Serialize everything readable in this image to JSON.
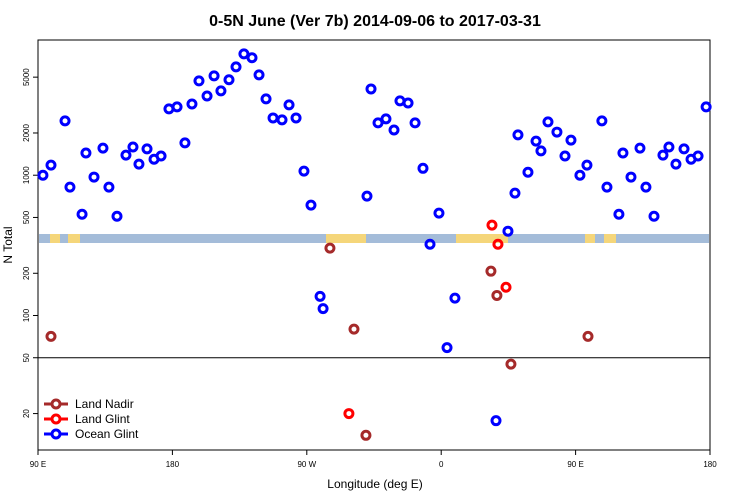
{
  "chart_data": {
    "type": "scatter",
    "title": "0-5N June (Ver 7b)   2014-09-06 to 2017-03-31",
    "x_label": "Longitude (deg E)",
    "y_label": "N Total",
    "xlim": [
      90,
      540
    ],
    "ylim": [
      11,
      9200
    ],
    "y_log": true,
    "xticks": [
      {
        "value": 90,
        "label": "90 E"
      },
      180,
      {
        "value": 270,
        "label": "90 W"
      },
      {
        "value": 360,
        "label": "0"
      },
      {
        "value": 450,
        "label": "90 E"
      },
      {
        "value": 540,
        "label": "180"
      }
    ],
    "yticks": [
      20,
      50,
      100,
      200,
      500,
      1000,
      2000,
      5000
    ],
    "hline": 50,
    "legend": "lower left",
    "series": [
      {
        "name": "Land Nadir",
        "color": "#a52a2a",
        "x": [
          98.7,
          285.5,
          301.6,
          309.6,
          393.3,
          397.3,
          406.7,
          458.3
        ],
        "values": [
          71,
          302,
          80,
          14,
          207,
          139,
          45,
          71
        ]
      },
      {
        "name": "Land Glint",
        "color": "#ff0000",
        "x": [
          394,
          398,
          403.4,
          298.2
        ],
        "values": [
          441,
          322,
          159,
          20
        ]
      },
      {
        "name": "Ocean Glint",
        "color": "#0000ff",
        "x": [
          93.3,
          98.7,
          108.1,
          111.4,
          119.5,
          122.1,
          127.5,
          133.5,
          137.5,
          142.9,
          148.9,
          153.6,
          157.6,
          163,
          167.7,
          172.4,
          177.7,
          183.1,
          188.4,
          193.1,
          197.8,
          203.2,
          207.9,
          212.5,
          217.9,
          222.6,
          227.9,
          233.3,
          238,
          242.7,
          247.4,
          253.4,
          258.1,
          262.8,
          268.1,
          272.8,
          278.9,
          280.9,
          310.3,
          313,
          317.7,
          323,
          328.4,
          332.4,
          337.8,
          342.5,
          347.8,
          352.5,
          358.5,
          363.9,
          369.2,
          404.7,
          409.4,
          411.4,
          418.1,
          423.5,
          426.8,
          431.5,
          437.5,
          442.9,
          446.9,
          452.9,
          457.6,
          467.6,
          471,
          479,
          481.7,
          487.1,
          493.1,
          497.1,
          502.5,
          508.5,
          512.5,
          517.2,
          522.6,
          527.3,
          532,
          537.4,
          396.7
        ],
        "values": [
          1000,
          1180,
          2440,
          822,
          527,
          1440,
          970,
          1560,
          822,
          510,
          1390,
          1590,
          1200,
          1540,
          1300,
          1370,
          2970,
          3070,
          1700,
          3220,
          4700,
          3670,
          5110,
          3990,
          4790,
          5920,
          7330,
          6870,
          5190,
          3500,
          2560,
          2480,
          3170,
          2560,
          1070,
          612,
          137,
          112,
          710,
          4120,
          2360,
          2520,
          2100,
          3390,
          3270,
          2360,
          1120,
          322,
          537,
          59,
          133,
          399,
          745,
          1940,
          1050,
          1750,
          1490,
          2400,
          2030,
          1370,
          1780,
          1000,
          1180,
          2440,
          822,
          527,
          1440,
          970,
          1560,
          822,
          510,
          1390,
          1590,
          1200,
          1540,
          1300,
          1370,
          3070,
          17.8
        ]
      }
    ]
  }
}
